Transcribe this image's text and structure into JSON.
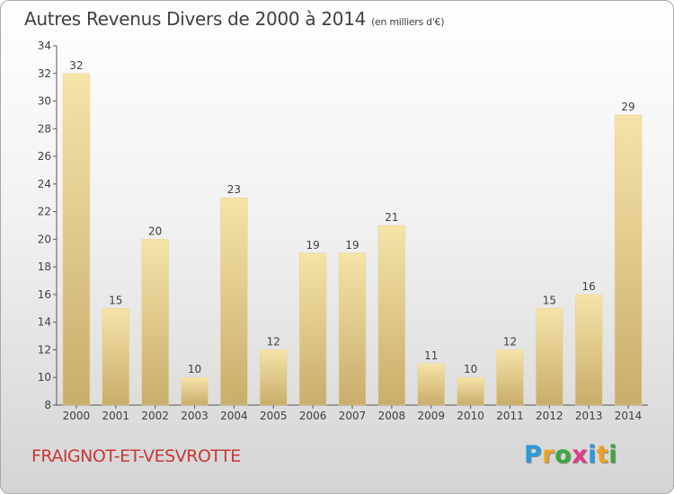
{
  "chart_data": {
    "type": "bar",
    "title": "Autres Revenus Divers de 2000 à 2014",
    "subtitle": "(en milliers d'€)",
    "categories": [
      "2000",
      "2001",
      "2002",
      "2003",
      "2004",
      "2005",
      "2006",
      "2007",
      "2008",
      "2009",
      "2010",
      "2011",
      "2012",
      "2013",
      "2014"
    ],
    "values": [
      32,
      15,
      20,
      10,
      23,
      12,
      19,
      19,
      21,
      11,
      10,
      12,
      15,
      16,
      29
    ],
    "ylim": [
      8,
      34
    ],
    "yticks": [
      8,
      10,
      12,
      14,
      16,
      18,
      20,
      22,
      24,
      26,
      28,
      30,
      32,
      34
    ],
    "xlabel": "",
    "ylabel": "",
    "grid": false,
    "bar_color_light": "#f5e3a8",
    "bar_color_dark": "#c9ad6b"
  },
  "commune": {
    "name": "FRAIGNOT-ET-VESVROTTE",
    "color": "#c83737"
  },
  "brand": {
    "letters": [
      "P",
      "r",
      "o",
      "x",
      "i",
      "t",
      "i"
    ],
    "colors": [
      "#2a9ad8",
      "#f0a020",
      "#3aa83a",
      "#e03a8a",
      "#2a9ad8",
      "#f0a020",
      "#3aa83a"
    ]
  }
}
